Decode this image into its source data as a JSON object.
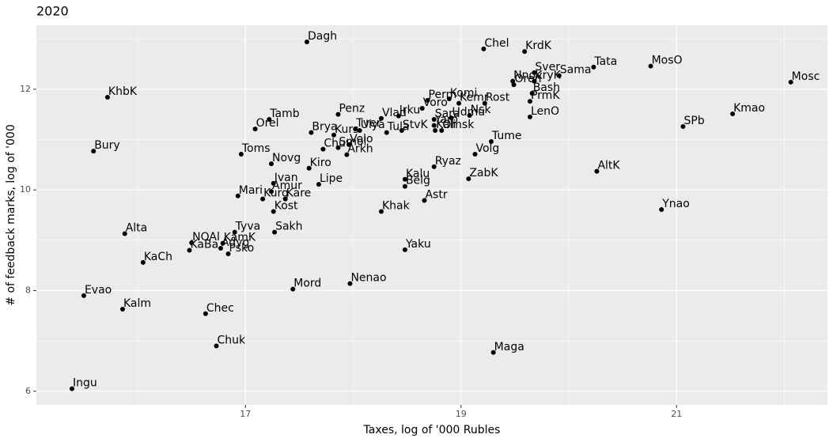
{
  "chart_data": {
    "type": "scatter",
    "title": "2020",
    "x_label": "Taxes, log of '000 Rubles",
    "y_label": "# of feedback marks, log of '000",
    "xlim": [
      15.06,
      22.4
    ],
    "ylim": [
      5.73,
      13.27
    ],
    "xticks": [
      17,
      19,
      21
    ],
    "yticks": [
      6,
      8,
      10,
      12
    ],
    "grid": true,
    "color": "#000000",
    "labels": [
      "Ingu",
      "Evao",
      "Kalm",
      "Alta",
      "KaCh",
      "Bury",
      "KhbK",
      "Chec",
      "Chuk",
      "NOAl",
      "KaBa",
      "Adyg",
      "Psko",
      "KamK",
      "Tyva",
      "Mari",
      "Toms",
      "Orel",
      "Tamb",
      "Novg",
      "Ivan",
      "Amur",
      "Kurg",
      "Kare",
      "Kost",
      "Sakh",
      "Mord",
      "Dagh",
      "Kiro",
      "Brya",
      "Lipe",
      "Chuv",
      "Kurs",
      "Smol",
      "Penz",
      "Arkh",
      "Volo",
      "Tver",
      "Ulya",
      "Nenao",
      "Vlad",
      "Irku",
      "Tula",
      "StvK",
      "Khak",
      "Kalu",
      "Belg",
      "Yaku",
      "Voro",
      "Astr",
      "Ryaz",
      "Sara",
      "Yaro",
      "Kali",
      "Omsk",
      "Perm",
      "Komi",
      "Kemr",
      "Udmu",
      "Nsk",
      "Rost",
      "Chel",
      "ZabK",
      "Volg",
      "Tume",
      "Maga",
      "KrdK",
      "Sver",
      "Nnov",
      "Oren",
      "KryK",
      "Sama",
      "Bash",
      "PrmK",
      "LenO",
      "Tata",
      "MosO",
      "AltK",
      "Kmao",
      "SPb",
      "Ynao",
      "Mosc"
    ],
    "x": [
      15.39,
      15.5,
      15.86,
      15.88,
      16.05,
      15.59,
      15.72,
      16.63,
      16.73,
      16.5,
      16.48,
      16.77,
      16.84,
      16.79,
      16.9,
      16.93,
      16.96,
      17.09,
      17.22,
      17.24,
      17.26,
      17.24,
      17.16,
      17.37,
      17.26,
      17.27,
      17.44,
      17.57,
      17.59,
      17.61,
      17.68,
      17.72,
      17.82,
      17.86,
      17.86,
      17.94,
      17.96,
      18.02,
      18.06,
      17.97,
      18.26,
      18.42,
      18.31,
      18.45,
      18.26,
      18.48,
      18.48,
      18.48,
      18.64,
      18.66,
      18.75,
      18.75,
      18.75,
      18.76,
      18.82,
      18.69,
      18.89,
      18.98,
      18.91,
      19.08,
      19.22,
      19.21,
      19.07,
      19.13,
      19.28,
      19.3,
      19.59,
      19.68,
      19.48,
      19.49,
      19.68,
      19.91,
      19.66,
      19.64,
      19.64,
      20.23,
      20.76,
      20.26,
      21.52,
      21.06,
      20.86,
      22.06
    ],
    "values": [
      6.05,
      7.9,
      7.63,
      9.13,
      8.56,
      10.77,
      11.84,
      7.54,
      6.9,
      8.95,
      8.8,
      8.84,
      8.73,
      8.94,
      9.16,
      9.88,
      10.71,
      11.21,
      11.4,
      10.52,
      10.13,
      9.97,
      9.82,
      9.82,
      9.57,
      9.16,
      8.03,
      12.94,
      10.43,
      11.14,
      10.11,
      10.81,
      11.09,
      10.84,
      11.5,
      10.7,
      10.9,
      11.21,
      11.18,
      8.14,
      11.42,
      11.47,
      11.14,
      11.18,
      9.57,
      10.21,
      10.07,
      8.81,
      11.62,
      9.79,
      10.46,
      11.4,
      11.28,
      11.18,
      11.18,
      11.78,
      11.81,
      11.72,
      11.43,
      11.48,
      11.72,
      12.8,
      10.22,
      10.71,
      10.96,
      6.77,
      12.75,
      12.33,
      12.16,
      12.09,
      12.16,
      12.27,
      11.92,
      11.76,
      11.45,
      12.44,
      12.46,
      10.37,
      11.51,
      11.26,
      9.61,
      12.14
    ]
  }
}
